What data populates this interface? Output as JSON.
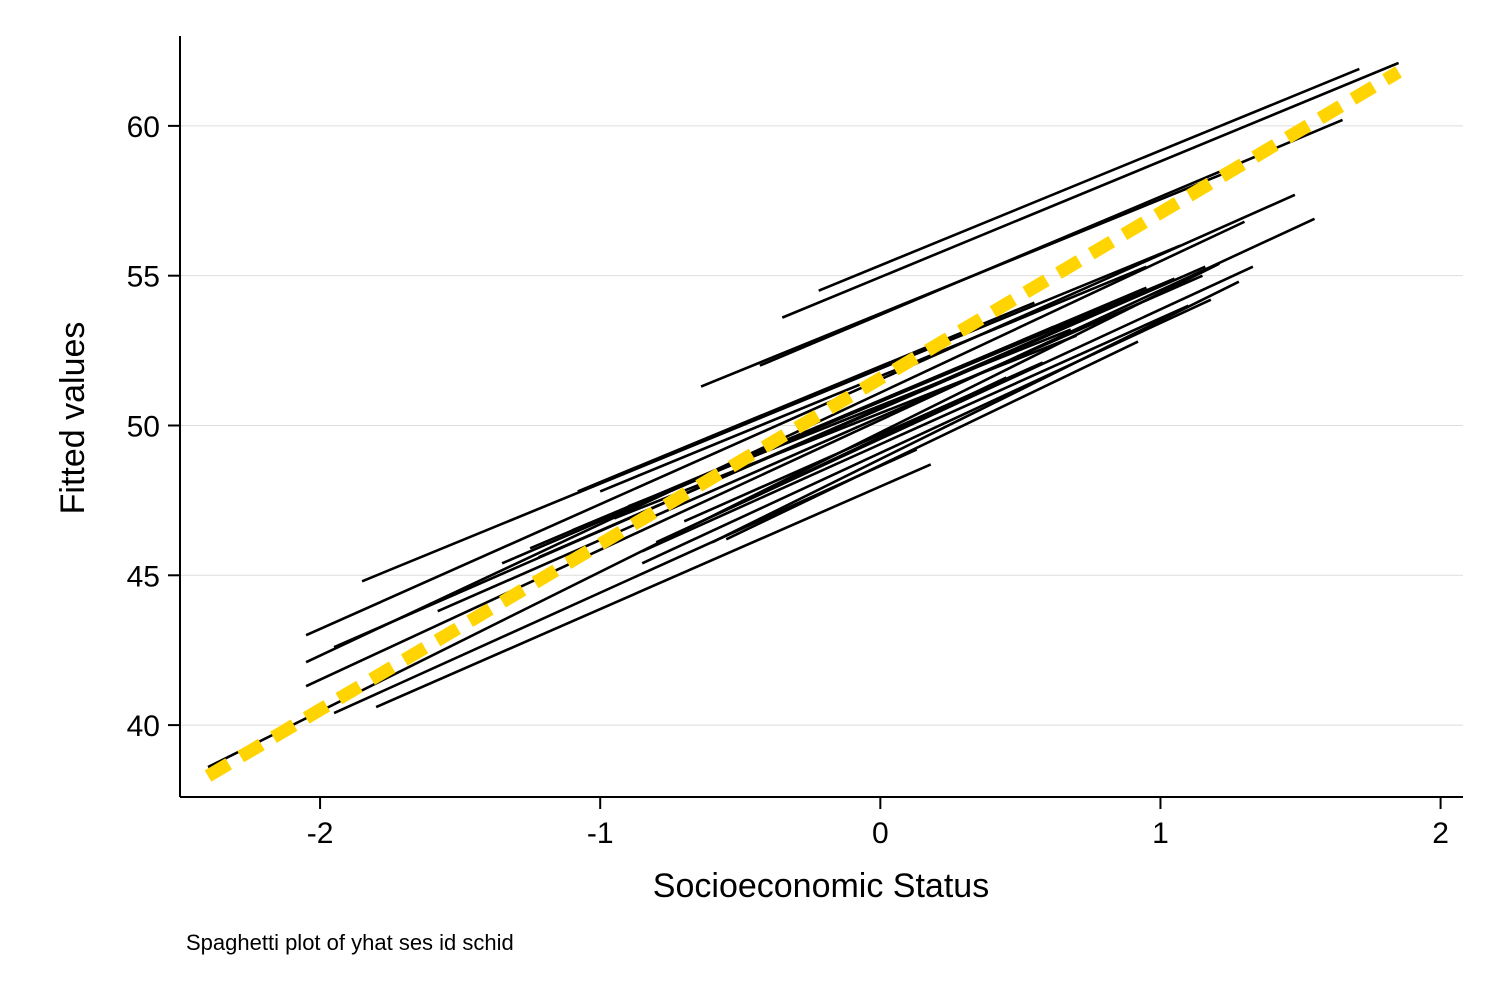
{
  "chart_data": {
    "type": "line",
    "title": "",
    "xlabel": "Socioeconomic Status",
    "ylabel": "Fitted values",
    "note": "Spaghetti plot of yhat ses id schid",
    "xlim": [
      -2.5,
      2.08
    ],
    "ylim": [
      37.6,
      63
    ],
    "xticks": [
      -2,
      -1,
      0,
      1,
      2
    ],
    "yticks": [
      40,
      45,
      50,
      55,
      60
    ],
    "grid": "horizontal",
    "colors": {
      "school_lines": "#000000",
      "overall_line": "#FFD400",
      "grid": "#dddddd"
    },
    "school_lines": [
      {
        "x": [
          -0.22,
          1.71
        ],
        "y": [
          54.5,
          61.9
        ]
      },
      {
        "x": [
          -0.35,
          1.85
        ],
        "y": [
          53.6,
          62.1
        ]
      },
      {
        "x": [
          -0.43,
          1.65
        ],
        "y": [
          52.0,
          60.2
        ]
      },
      {
        "x": [
          -0.64,
          1.25
        ],
        "y": [
          51.3,
          58.5
        ]
      },
      {
        "x": [
          -1.85,
          1.07
        ],
        "y": [
          44.8,
          56.0
        ]
      },
      {
        "x": [
          -2.05,
          1.48
        ],
        "y": [
          43.0,
          57.7
        ]
      },
      {
        "x": [
          -1.95,
          1.16
        ],
        "y": [
          42.6,
          55.3
        ]
      },
      {
        "x": [
          -2.05,
          1.3
        ],
        "y": [
          42.1,
          56.8
        ]
      },
      {
        "x": [
          -1.58,
          1.15
        ],
        "y": [
          43.8,
          55.0
        ]
      },
      {
        "x": [
          -2.05,
          1.55
        ],
        "y": [
          41.3,
          56.9
        ]
      },
      {
        "x": [
          -1.35,
          0.62
        ],
        "y": [
          45.4,
          53.3
        ]
      },
      {
        "x": [
          -1.25,
          0.95
        ],
        "y": [
          45.9,
          54.6
        ]
      },
      {
        "x": [
          -1.1,
          1.05
        ],
        "y": [
          46.5,
          54.9
        ]
      },
      {
        "x": [
          -1.08,
          0.55
        ],
        "y": [
          47.8,
          54.1
        ]
      },
      {
        "x": [
          -1.0,
          0.95
        ],
        "y": [
          47.8,
          55.3
        ]
      },
      {
        "x": [
          -1.22,
          0.48
        ],
        "y": [
          45.6,
          52.5
        ]
      },
      {
        "x": [
          -0.95,
          0.7
        ],
        "y": [
          46.9,
          53.0
        ]
      },
      {
        "x": [
          -0.9,
          0.68
        ],
        "y": [
          47.3,
          53.2
        ]
      },
      {
        "x": [
          -1.02,
          0.88
        ],
        "y": [
          46.4,
          54.2
        ]
      },
      {
        "x": [
          -0.8,
          1.33
        ],
        "y": [
          46.1,
          55.3
        ]
      },
      {
        "x": [
          -0.85,
          1.1
        ],
        "y": [
          45.8,
          54.0
        ]
      },
      {
        "x": [
          -0.85,
          1.18
        ],
        "y": [
          45.4,
          54.2
        ]
      },
      {
        "x": [
          -0.6,
          1.28
        ],
        "y": [
          46.1,
          54.8
        ]
      },
      {
        "x": [
          -0.55,
          0.92
        ],
        "y": [
          46.2,
          52.8
        ]
      },
      {
        "x": [
          -0.7,
          0.58
        ],
        "y": [
          46.8,
          52.1
        ]
      },
      {
        "x": [
          -0.5,
          0.45
        ],
        "y": [
          47.4,
          51.6
        ]
      },
      {
        "x": [
          -2.4,
          1.21
        ],
        "y": [
          38.6,
          55.4
        ]
      },
      {
        "x": [
          -1.95,
          0.13
        ],
        "y": [
          40.4,
          49.2
        ]
      },
      {
        "x": [
          -1.8,
          0.18
        ],
        "y": [
          40.6,
          48.7
        ]
      }
    ],
    "overall_line": {
      "x": [
        -2.4,
        1.85
      ],
      "y": [
        38.3,
        61.8
      ]
    }
  }
}
